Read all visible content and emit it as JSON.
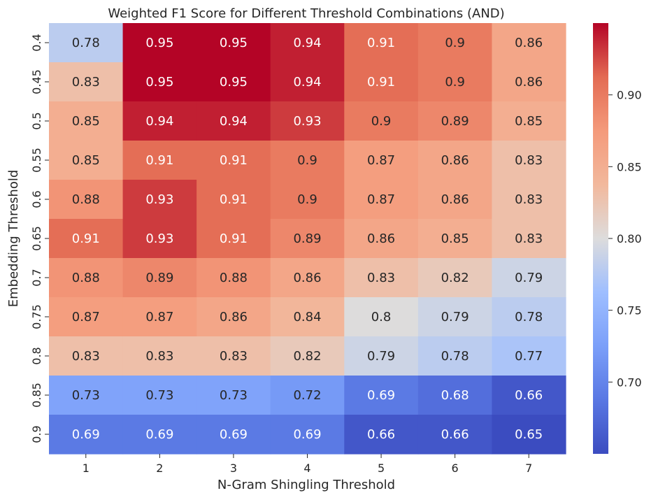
{
  "chart_data": {
    "type": "heatmap",
    "title": "Weighted F1 Score for Different Threshold Combinations (AND)",
    "xlabel": "N-Gram Shingling Threshold",
    "ylabel": "Embedding Threshold",
    "x_categories": [
      "1",
      "2",
      "3",
      "4",
      "5",
      "6",
      "7"
    ],
    "y_categories": [
      "0.4",
      "0.45",
      "0.5",
      "0.55",
      "0.6",
      "0.65",
      "0.7",
      "0.75",
      "0.8",
      "0.85",
      "0.9"
    ],
    "values": [
      [
        0.78,
        0.95,
        0.95,
        0.94,
        0.91,
        0.9,
        0.86
      ],
      [
        0.83,
        0.95,
        0.95,
        0.94,
        0.91,
        0.9,
        0.86
      ],
      [
        0.85,
        0.94,
        0.94,
        0.93,
        0.9,
        0.89,
        0.85
      ],
      [
        0.85,
        0.91,
        0.91,
        0.9,
        0.87,
        0.86,
        0.83
      ],
      [
        0.88,
        0.93,
        0.91,
        0.9,
        0.87,
        0.86,
        0.83
      ],
      [
        0.91,
        0.93,
        0.91,
        0.89,
        0.86,
        0.85,
        0.83
      ],
      [
        0.88,
        0.89,
        0.88,
        0.86,
        0.83,
        0.82,
        0.79
      ],
      [
        0.87,
        0.87,
        0.86,
        0.84,
        0.8,
        0.79,
        0.78
      ],
      [
        0.83,
        0.83,
        0.83,
        0.82,
        0.79,
        0.78,
        0.77
      ],
      [
        0.73,
        0.73,
        0.73,
        0.72,
        0.69,
        0.68,
        0.66
      ],
      [
        0.69,
        0.69,
        0.69,
        0.69,
        0.66,
        0.66,
        0.65
      ]
    ],
    "annotations": [
      [
        "0.78",
        "0.95",
        "0.95",
        "0.94",
        "0.91",
        "0.9",
        "0.86"
      ],
      [
        "0.83",
        "0.95",
        "0.95",
        "0.94",
        "0.91",
        "0.9",
        "0.86"
      ],
      [
        "0.85",
        "0.94",
        "0.94",
        "0.93",
        "0.9",
        "0.89",
        "0.85"
      ],
      [
        "0.85",
        "0.91",
        "0.91",
        "0.9",
        "0.87",
        "0.86",
        "0.83"
      ],
      [
        "0.88",
        "0.93",
        "0.91",
        "0.9",
        "0.87",
        "0.86",
        "0.83"
      ],
      [
        "0.91",
        "0.93",
        "0.91",
        "0.89",
        "0.86",
        "0.85",
        "0.83"
      ],
      [
        "0.88",
        "0.89",
        "0.88",
        "0.86",
        "0.83",
        "0.82",
        "0.79"
      ],
      [
        "0.87",
        "0.87",
        "0.86",
        "0.84",
        "0.8",
        "0.79",
        "0.78"
      ],
      [
        "0.83",
        "0.83",
        "0.83",
        "0.82",
        "0.79",
        "0.78",
        "0.77"
      ],
      [
        "0.73",
        "0.73",
        "0.73",
        "0.72",
        "0.69",
        "0.68",
        "0.66"
      ],
      [
        "0.69",
        "0.69",
        "0.69",
        "0.69",
        "0.66",
        "0.66",
        "0.65"
      ]
    ],
    "colormap": "coolwarm",
    "color_range": [
      0.65,
      0.95
    ],
    "colorbar_ticks": [
      "0.70",
      "0.75",
      "0.80",
      "0.85",
      "0.90"
    ],
    "colorbar_tick_values": [
      0.7,
      0.75,
      0.8,
      0.85,
      0.9
    ],
    "grid": false
  }
}
